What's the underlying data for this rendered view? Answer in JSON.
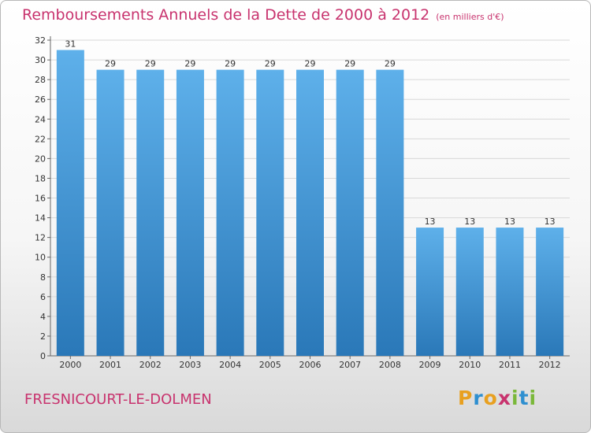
{
  "header": {
    "title": "Remboursements Annuels de la Dette de 2000 à 2012",
    "unit": "(en milliers d'€)"
  },
  "footer": {
    "commune": "FRESNICOURT-LE-DOLMEN"
  },
  "brand": {
    "letters": [
      "P",
      "r",
      "o",
      "x",
      "i",
      "t",
      "i"
    ],
    "colors": [
      "#e8a020",
      "#2e8fd0",
      "#e8a020",
      "#c8336e",
      "#7ab83a",
      "#2e8fd0",
      "#7ab83a"
    ]
  },
  "colors": {
    "bar_light": "#5eb0ea",
    "bar_dark": "#2a78b8",
    "title": "#c8336e",
    "grid": "#d8d8d8"
  },
  "chart_data": {
    "type": "bar",
    "categories": [
      "2000",
      "2001",
      "2002",
      "2003",
      "2004",
      "2005",
      "2006",
      "2007",
      "2008",
      "2009",
      "2010",
      "2011",
      "2012"
    ],
    "values": [
      31,
      29,
      29,
      29,
      29,
      29,
      29,
      29,
      29,
      13,
      13,
      13,
      13
    ],
    "ylim": [
      0,
      32
    ],
    "yticks": [
      0,
      2,
      4,
      6,
      8,
      10,
      12,
      14,
      16,
      18,
      20,
      22,
      24,
      26,
      28,
      30,
      32
    ],
    "grid": true,
    "data_labels": true
  }
}
